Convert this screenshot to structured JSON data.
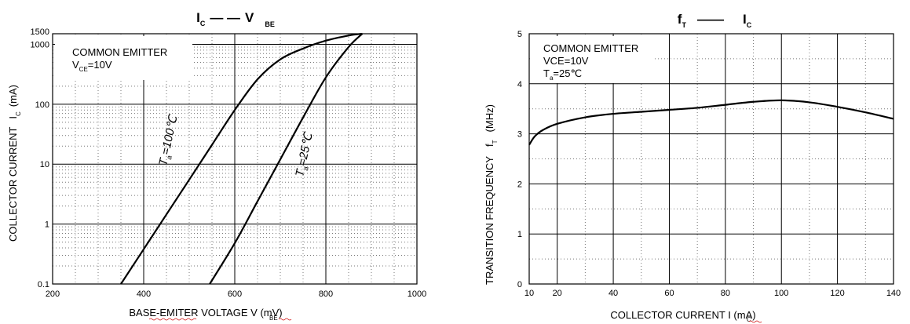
{
  "chart_data": [
    {
      "type": "line",
      "title_main_1": "I",
      "title_sub_1": "C",
      "title_dash": "— —",
      "title_main_2": "V",
      "title_sub_2": "BE",
      "xlabel_main": "BASE-EMITER VOLTAGE V (mV)",
      "xlabel_sub": "BE",
      "ylabel_main": "COLLECTOR CURRENT",
      "ylabel_i": "I",
      "ylabel_sub": "C",
      "ylabel_unit": "(mA)",
      "x_scale": "linear",
      "y_scale": "log",
      "xlim": [
        200,
        1000
      ],
      "ylim": [
        0.1,
        1500
      ],
      "x_ticks": [
        200,
        400,
        600,
        800,
        1000
      ],
      "x_tick_labels": [
        "200",
        "400",
        "600",
        "800",
        "1000"
      ],
      "y_ticks": [
        0.1,
        1,
        10,
        100,
        1000,
        1500
      ],
      "y_tick_labels": [
        "0.1",
        "1",
        "10",
        "100",
        "1000",
        "1500"
      ],
      "grid": true,
      "legend": {
        "line1": "COMMON EMITTER",
        "line2_main": "V",
        "line2_sub": "CE",
        "line2_value": "=10V"
      },
      "series": [
        {
          "name_main": "T",
          "name_sub": "a",
          "name_value": "=100℃",
          "x": [
            350,
            400,
            450,
            500,
            550,
            600,
            650,
            700,
            750,
            800,
            850,
            880
          ],
          "y": [
            0.1,
            0.38,
            1.45,
            5.5,
            21,
            80,
            260,
            560,
            850,
            1150,
            1400,
            1500
          ]
        },
        {
          "name_main": "T",
          "name_sub": "a",
          "name_value": "=25℃",
          "x": [
            545,
            600,
            650,
            700,
            750,
            800,
            850,
            880
          ],
          "y": [
            0.1,
            0.48,
            2.4,
            12,
            60,
            280,
            900,
            1500
          ]
        }
      ]
    },
    {
      "type": "line",
      "title_main_1": "f",
      "title_sub_1": "T",
      "title_dash": "——",
      "title_main_2": "I",
      "title_sub_2": "C",
      "xlabel_main": "COLLECTOR CURRENT I (mA)",
      "xlabel_sub": "C",
      "ylabel_main": "TRANSITION FREQUENCY",
      "ylabel_i": "f",
      "ylabel_sub": "T",
      "ylabel_unit": "(MHz)",
      "xlim": [
        10,
        140
      ],
      "ylim": [
        0,
        5
      ],
      "x_ticks": [
        10,
        20,
        40,
        60,
        80,
        100,
        120,
        140
      ],
      "x_tick_labels": [
        "10",
        "20",
        "40",
        "60",
        "80",
        "100",
        "120",
        "140"
      ],
      "y_ticks": [
        0,
        1,
        2,
        3,
        4,
        5
      ],
      "y_tick_labels": [
        "0",
        "1",
        "2",
        "3",
        "4",
        "5"
      ],
      "grid": true,
      "legend": {
        "line1": "COMMON EMITTER",
        "line2": "VCE=10V",
        "line3_main": "T",
        "line3_sub": "a",
        "line3_value": "=25℃"
      },
      "series": [
        {
          "x": [
            10,
            12,
            15,
            20,
            30,
            40,
            50,
            60,
            70,
            80,
            90,
            100,
            110,
            120,
            130,
            140
          ],
          "y": [
            2.78,
            2.95,
            3.08,
            3.2,
            3.33,
            3.4,
            3.44,
            3.48,
            3.52,
            3.58,
            3.64,
            3.67,
            3.63,
            3.54,
            3.43,
            3.3
          ]
        }
      ]
    }
  ]
}
